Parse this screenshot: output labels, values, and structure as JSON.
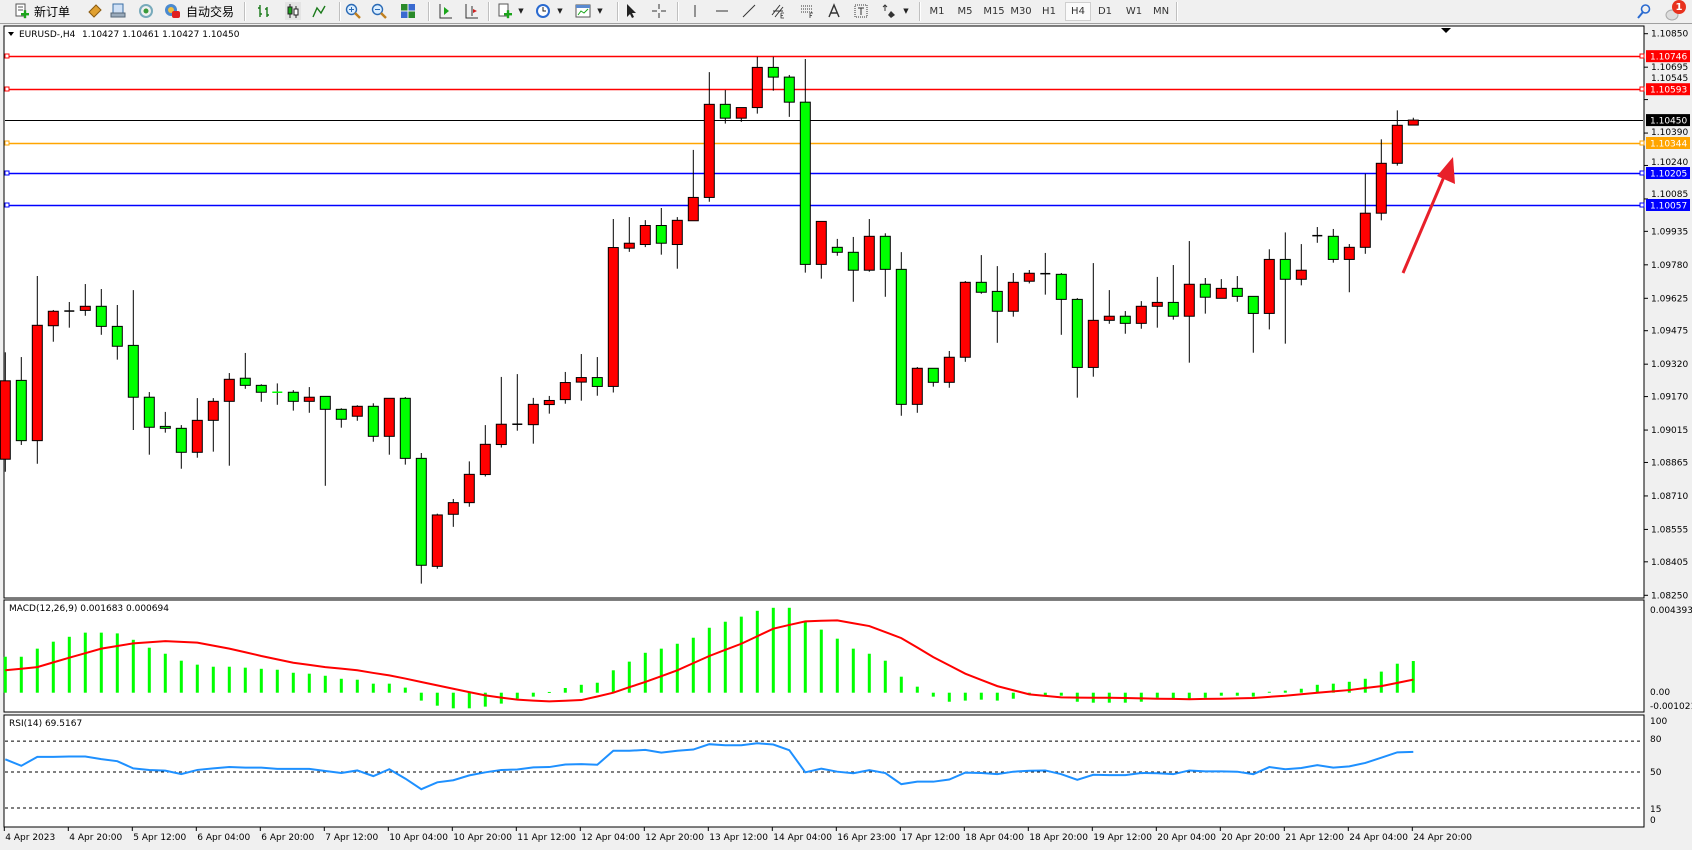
{
  "toolbar": {
    "new_order_label": "新订单",
    "auto_trading_label": "自动交易",
    "timeframes": [
      "M1",
      "M5",
      "M15",
      "M30",
      "H1",
      "H4",
      "D1",
      "W1",
      "MN"
    ],
    "active_timeframe": "H4",
    "notification_count": "1"
  },
  "chart": {
    "symbol_label": "EURUSD-,H4",
    "ohlc_label": "1.10427 1.10461 1.10427 1.10450",
    "colors": {
      "bull_body": "#FF0000",
      "bear_body": "#00FF00",
      "wick": "#000000",
      "background": "#FFFFFF",
      "arrow": "#E8202A"
    },
    "price_axis_labels": [
      "1.10850",
      "1.10695",
      "1.10545",
      "1.10390",
      "1.10240",
      "1.10085",
      "1.09935",
      "1.09780",
      "1.09625",
      "1.09475",
      "1.09320",
      "1.09170",
      "1.09015",
      "1.08865",
      "1.08710",
      "1.08555",
      "1.08405",
      "1.08250"
    ],
    "price_range": [
      1.0825,
      1.1085
    ],
    "horizontal_lines": [
      {
        "price": "1.10746",
        "color": "#FF0000"
      },
      {
        "price": "1.10593",
        "color": "#FF0000"
      },
      {
        "price": "1.10450",
        "color": "#000000"
      },
      {
        "price": "1.10344",
        "color": "#FFA500"
      },
      {
        "price": "1.10205",
        "color": "#0000FF"
      },
      {
        "price": "1.10057",
        "color": "#0000FF"
      }
    ],
    "time_labels": [
      "4 Apr 2023",
      "4 Apr 20:00",
      "5 Apr 12:00",
      "6 Apr 04:00",
      "6 Apr 20:00",
      "7 Apr 12:00",
      "10 Apr 04:00",
      "10 Apr 20:00",
      "11 Apr 12:00",
      "12 Apr 04:00",
      "12 Apr 20:00",
      "13 Apr 12:00",
      "14 Apr 04:00",
      "16 Apr 23:00",
      "17 Apr 12:00",
      "18 Apr 04:00",
      "18 Apr 20:00",
      "19 Apr 12:00",
      "20 Apr 04:00",
      "20 Apr 20:00",
      "21 Apr 12:00",
      "24 Apr 04:00",
      "24 Apr 20:00"
    ],
    "candles": [
      [
        1.0888,
        1.09375,
        1.08822,
        1.09243
      ],
      [
        1.09245,
        1.09353,
        1.08946,
        1.08966
      ],
      [
        1.08966,
        1.09728,
        1.08859,
        1.095
      ],
      [
        1.09498,
        1.09571,
        1.09424,
        1.09565
      ],
      [
        1.09566,
        1.09608,
        1.09489,
        1.09566
      ],
      [
        1.09569,
        1.09691,
        1.09544,
        1.09588
      ],
      [
        1.09588,
        1.09668,
        1.09456,
        1.09495
      ],
      [
        1.09495,
        1.09594,
        1.09341,
        1.09403
      ],
      [
        1.09407,
        1.09663,
        1.09015,
        1.09167
      ],
      [
        1.09167,
        1.09191,
        1.08901,
        1.09028
      ],
      [
        1.09032,
        1.09099,
        1.09003,
        1.09023
      ],
      [
        1.09023,
        1.09038,
        1.08836,
        1.08912
      ],
      [
        1.08912,
        1.09163,
        1.08887,
        1.0906
      ],
      [
        1.0906,
        1.09163,
        1.08915,
        1.09148
      ],
      [
        1.09148,
        1.09279,
        1.0885,
        1.0925
      ],
      [
        1.09255,
        1.09372,
        1.09206,
        1.09222
      ],
      [
        1.09222,
        1.09227,
        1.09146,
        1.0919
      ],
      [
        1.0919,
        1.09231,
        1.09132,
        1.0919
      ],
      [
        1.0919,
        1.092,
        1.09105,
        1.09148
      ],
      [
        1.09148,
        1.09214,
        1.09095,
        1.09167
      ],
      [
        1.09171,
        1.09171,
        1.08757,
        1.09111
      ],
      [
        1.09111,
        1.09116,
        1.09026,
        1.09065
      ],
      [
        1.09079,
        1.0913,
        1.09058,
        1.09125
      ],
      [
        1.09125,
        1.09139,
        1.08961,
        1.08986
      ],
      [
        1.08986,
        1.09162,
        1.08901,
        1.09162
      ],
      [
        1.09162,
        1.09168,
        1.08855,
        1.08884
      ],
      [
        1.08884,
        1.08909,
        1.08304,
        1.08389
      ],
      [
        1.08384,
        1.08628,
        1.08373,
        1.08622
      ],
      [
        1.08625,
        1.08696,
        1.08567,
        1.08679
      ],
      [
        1.08679,
        1.0887,
        1.0866,
        1.0881
      ],
      [
        1.08809,
        1.09038,
        1.088,
        1.08949
      ],
      [
        1.08948,
        1.09261,
        1.08934,
        1.09042
      ],
      [
        1.09042,
        1.09274,
        1.09012,
        1.09042
      ],
      [
        1.0904,
        1.09164,
        1.08952,
        1.09134
      ],
      [
        1.09133,
        1.09173,
        1.09091,
        1.09152
      ],
      [
        1.09156,
        1.09284,
        1.09137,
        1.09235
      ],
      [
        1.09237,
        1.09367,
        1.09151,
        1.09258
      ],
      [
        1.09258,
        1.09353,
        1.09174,
        1.09217
      ],
      [
        1.09217,
        1.09992,
        1.09189,
        1.0986
      ],
      [
        1.09857,
        1.10001,
        1.0984,
        1.0988
      ],
      [
        1.09874,
        1.09987,
        1.09862,
        1.09962
      ],
      [
        1.09962,
        1.10043,
        1.09827,
        1.0988
      ],
      [
        1.09874,
        1.10001,
        1.09762,
        1.09986
      ],
      [
        1.09984,
        1.10312,
        1.09984,
        1.10092
      ],
      [
        1.10092,
        1.10672,
        1.10072,
        1.10523
      ],
      [
        1.10523,
        1.10589,
        1.10434,
        1.10459
      ],
      [
        1.10459,
        1.10508,
        1.10442,
        1.10508
      ],
      [
        1.10508,
        1.10743,
        1.1048,
        1.10694
      ],
      [
        1.10694,
        1.10743,
        1.10586,
        1.10649
      ],
      [
        1.10649,
        1.10659,
        1.10465,
        1.10533
      ],
      [
        1.10533,
        1.10733,
        1.09744,
        1.09782
      ],
      [
        1.09782,
        1.09981,
        1.09716,
        1.09981
      ],
      [
        1.09861,
        1.099,
        1.09822,
        1.09838
      ],
      [
        1.09838,
        1.09909,
        1.09609,
        1.09755
      ],
      [
        1.09755,
        1.09992,
        1.09748,
        1.09912
      ],
      [
        1.09912,
        1.09926,
        1.09632,
        1.09759
      ],
      [
        1.09759,
        1.09839,
        1.09081,
        1.09134
      ],
      [
        1.09134,
        1.09307,
        1.09095,
        1.09301
      ],
      [
        1.09301,
        1.09301,
        1.09216,
        1.09236
      ],
      [
        1.09236,
        1.09381,
        1.09211,
        1.09352
      ],
      [
        1.09352,
        1.09705,
        1.09331,
        1.09699
      ],
      [
        1.09699,
        1.09825,
        1.09646,
        1.09653
      ],
      [
        1.09657,
        1.09774,
        1.09419,
        1.09565
      ],
      [
        1.09565,
        1.09742,
        1.0954,
        1.09699
      ],
      [
        1.09704,
        1.09756,
        1.09694,
        1.09741
      ],
      [
        1.09739,
        1.09835,
        1.09642,
        1.09739
      ],
      [
        1.09736,
        1.09742,
        1.09456,
        1.0962
      ],
      [
        1.0962,
        1.09626,
        1.09165,
        1.09305
      ],
      [
        1.09305,
        1.09788,
        1.09262,
        1.09523
      ],
      [
        1.09523,
        1.09663,
        1.09507,
        1.09542
      ],
      [
        1.09542,
        1.09566,
        1.09461,
        1.09509
      ],
      [
        1.09509,
        1.09612,
        1.09484,
        1.09588
      ],
      [
        1.09588,
        1.09724,
        1.09489,
        1.09606
      ],
      [
        1.09606,
        1.09779,
        1.09526,
        1.09542
      ],
      [
        1.09542,
        1.0989,
        1.09327,
        1.0969
      ],
      [
        1.0969,
        1.09719,
        1.09554,
        1.0963
      ],
      [
        1.09625,
        1.09714,
        1.09625,
        1.09671
      ],
      [
        1.09671,
        1.09728,
        1.09609,
        1.09634
      ],
      [
        1.09634,
        1.09634,
        1.09373,
        1.09555
      ],
      [
        1.09555,
        1.09852,
        1.09481,
        1.09805
      ],
      [
        1.09805,
        1.0993,
        1.09415,
        1.09713
      ],
      [
        1.09713,
        1.09876,
        1.09685,
        1.09755
      ],
      [
        1.09915,
        1.09955,
        1.09882,
        1.09915
      ],
      [
        1.09912,
        1.09946,
        1.0979,
        1.09805
      ],
      [
        1.09805,
        1.09876,
        1.09653,
        1.09861
      ],
      [
        1.09861,
        1.10202,
        1.09831,
        1.10019
      ],
      [
        1.10019,
        1.10361,
        1.09986,
        1.1025
      ],
      [
        1.1025,
        1.10495,
        1.10239,
        1.10426
      ],
      [
        1.10427,
        1.10461,
        1.10427,
        1.1045
      ]
    ]
  },
  "macd": {
    "label": "MACD(12,26,9) 0.001683 0.000694",
    "axis_labels": [
      "0.004393",
      "0.00",
      "-0.001021"
    ],
    "colors": {
      "histogram": "#00FF00",
      "signal": "#FF0000"
    },
    "histogram": [
      0.00191,
      0.00191,
      0.00234,
      0.00271,
      0.00297,
      0.00319,
      0.00319,
      0.00315,
      0.00281,
      0.00239,
      0.00207,
      0.0017,
      0.00149,
      0.00138,
      0.00138,
      0.00133,
      0.00127,
      0.00122,
      0.00106,
      0.00101,
      0.0009,
      0.00074,
      0.00069,
      0.00048,
      0.00048,
      0.00027,
      -0.00042,
      -0.00069,
      -0.00083,
      -0.00083,
      -0.00074,
      -0.00058,
      -0.00032,
      -0.00021,
      4e-05,
      0.00025,
      0.00042,
      0.00053,
      0.00119,
      0.00165,
      0.00212,
      0.00234,
      0.0026,
      0.00292,
      0.00345,
      0.00377,
      0.00404,
      0.00435,
      0.00451,
      0.00451,
      0.00377,
      0.00335,
      0.00287,
      0.00234,
      0.00207,
      0.0017,
      0.00085,
      0.00032,
      -0.00021,
      -0.00048,
      -0.00042,
      -0.00037,
      -0.00042,
      -0.00032,
      -0.00011,
      -0.00016,
      -0.00016,
      -0.00048,
      -0.00053,
      -0.00053,
      -0.00053,
      -0.00048,
      -0.00027,
      -0.00032,
      -0.00032,
      -0.00027,
      -0.00016,
      -0.00016,
      -0.00021,
      5e-05,
      0.00011,
      0.00021,
      0.00042,
      0.00048,
      0.00058,
      0.00074,
      0.00112,
      0.00154,
      0.001683
    ],
    "signal": [
      0.00119,
      0.00127,
      0.00136,
      0.00161,
      0.00186,
      0.0021,
      0.00234,
      0.00248,
      0.00262,
      0.00268,
      0.00274,
      0.0027,
      0.00266,
      0.0025,
      0.00234,
      0.00215,
      0.00195,
      0.00177,
      0.00159,
      0.00148,
      0.00136,
      0.00128,
      0.00119,
      0.00105,
      0.00092,
      0.00075,
      0.00057,
      0.00039,
      0.00021,
      3e-05,
      -0.00014,
      -0.00026,
      -0.00037,
      -0.00042,
      -0.00046,
      -0.00043,
      -0.00039,
      -0.0002,
      0,
      0.00029,
      0.00057,
      0.00088,
      0.00119,
      0.00157,
      0.00195,
      0.00228,
      0.0026,
      0.003,
      0.0034,
      0.0036,
      0.00379,
      0.00382,
      0.00384,
      0.00369,
      0.00354,
      0.00322,
      0.0029,
      0.0024,
      0.00189,
      0.00145,
      0.00101,
      0.00068,
      0.00035,
      0.00013,
      -9e-05,
      -0.00017,
      -0.00025,
      -0.00026,
      -0.00027,
      -0.00027,
      -0.00028,
      -0.0003,
      -0.00032,
      -0.00033,
      -0.00035,
      -0.00033,
      -0.00032,
      -0.0003,
      -0.00028,
      -0.00022,
      -0.00016,
      -8e-05,
      0,
      7e-05,
      0.00014,
      0.00025,
      0.00035,
      0.00052,
      0.000694
    ]
  },
  "rsi": {
    "label": "RSI(14) 69.5167",
    "axis_labels": [
      "100",
      "80",
      "50",
      "15",
      "0"
    ],
    "levels": [
      80,
      50,
      15
    ],
    "color": "#1E90FF",
    "values": [
      62.3,
      56,
      64.7,
      64.7,
      65,
      65,
      62.5,
      60.5,
      53.5,
      52,
      51.3,
      48,
      52,
      53.5,
      54.8,
      54.2,
      54.2,
      53,
      53,
      53,
      51,
      49,
      51.5,
      46,
      52.7,
      43.6,
      33.3,
      40,
      42,
      46.7,
      49.7,
      52,
      52.4,
      54.5,
      54.8,
      57.3,
      57.6,
      57,
      70.6,
      70.6,
      71.5,
      68.8,
      70.6,
      71.8,
      77,
      76,
      76,
      77.9,
      76.7,
      71.2,
      49.7,
      53.3,
      50.3,
      48.8,
      51.8,
      49,
      38.2,
      40.6,
      40.6,
      42.7,
      49.4,
      49,
      47.9,
      50.3,
      51.2,
      51.5,
      47.9,
      42.4,
      47.3,
      47,
      47,
      49,
      48.8,
      47.9,
      51.5,
      50.6,
      50.6,
      50.3,
      47.9,
      54.8,
      52.7,
      53.9,
      56.7,
      54.2,
      55.5,
      58.8,
      63.9,
      69.1,
      69.5167
    ]
  }
}
